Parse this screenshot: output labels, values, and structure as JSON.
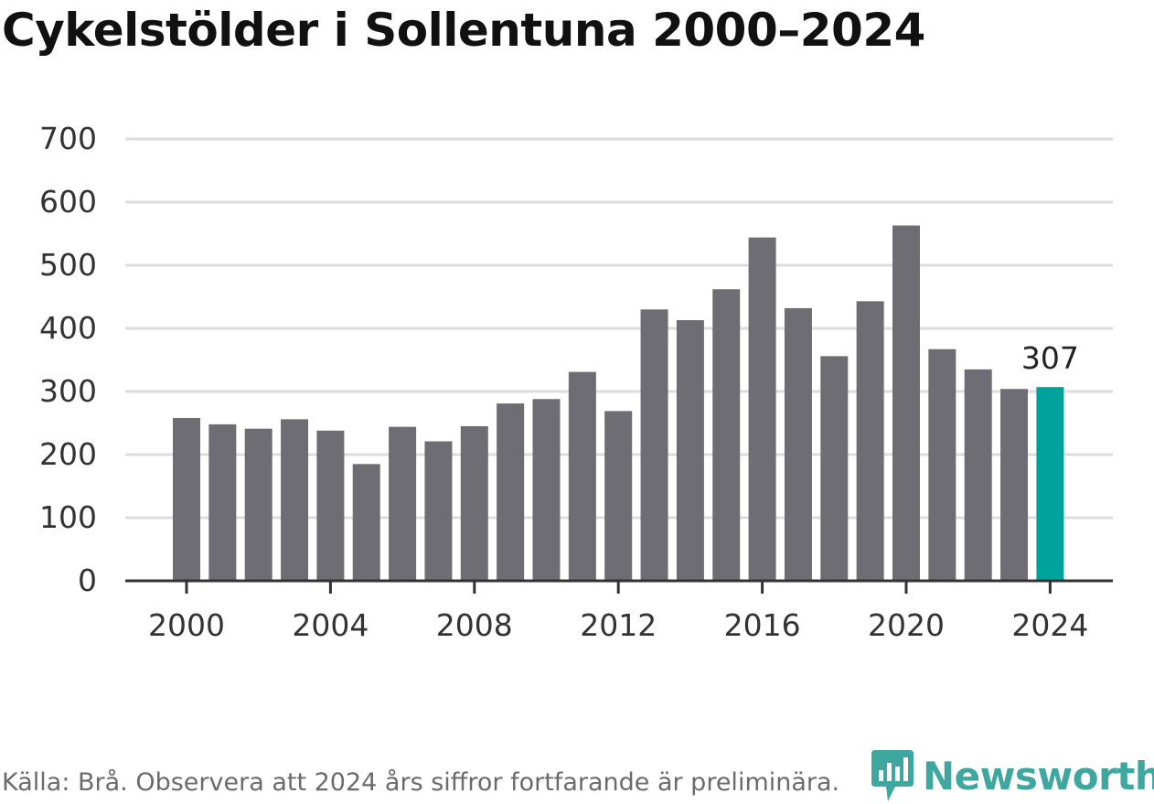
{
  "chart_data": {
    "type": "bar",
    "title": "Cykelstölder i Sollentuna 2000–2024",
    "xlabel": "",
    "ylabel": "",
    "x": [
      2000,
      2001,
      2002,
      2003,
      2004,
      2005,
      2006,
      2007,
      2008,
      2009,
      2010,
      2011,
      2012,
      2013,
      2014,
      2015,
      2016,
      2017,
      2018,
      2019,
      2020,
      2021,
      2022,
      2023,
      2024
    ],
    "values": [
      258,
      248,
      241,
      256,
      238,
      185,
      244,
      221,
      245,
      281,
      288,
      331,
      269,
      430,
      413,
      462,
      544,
      432,
      356,
      443,
      563,
      367,
      335,
      304,
      307
    ],
    "ylim": [
      0,
      700
    ],
    "yticks": [
      0,
      100,
      200,
      300,
      400,
      500,
      600,
      700
    ],
    "xticks": [
      2000,
      2004,
      2008,
      2012,
      2016,
      2020,
      2024
    ],
    "grid": true,
    "highlight": {
      "year": 2024,
      "label": "307"
    },
    "colors": {
      "bar": "#6e6d73",
      "highlight": "#00a39b",
      "grid": "#dddddd",
      "axis": "#333333",
      "text": "#333333"
    }
  },
  "footer": {
    "source": "Källa: Brå. Observera att 2024 års siffror fortfarande är preliminära.",
    "brand": "Newsworthy",
    "brand_color": "#3ea7a0"
  }
}
